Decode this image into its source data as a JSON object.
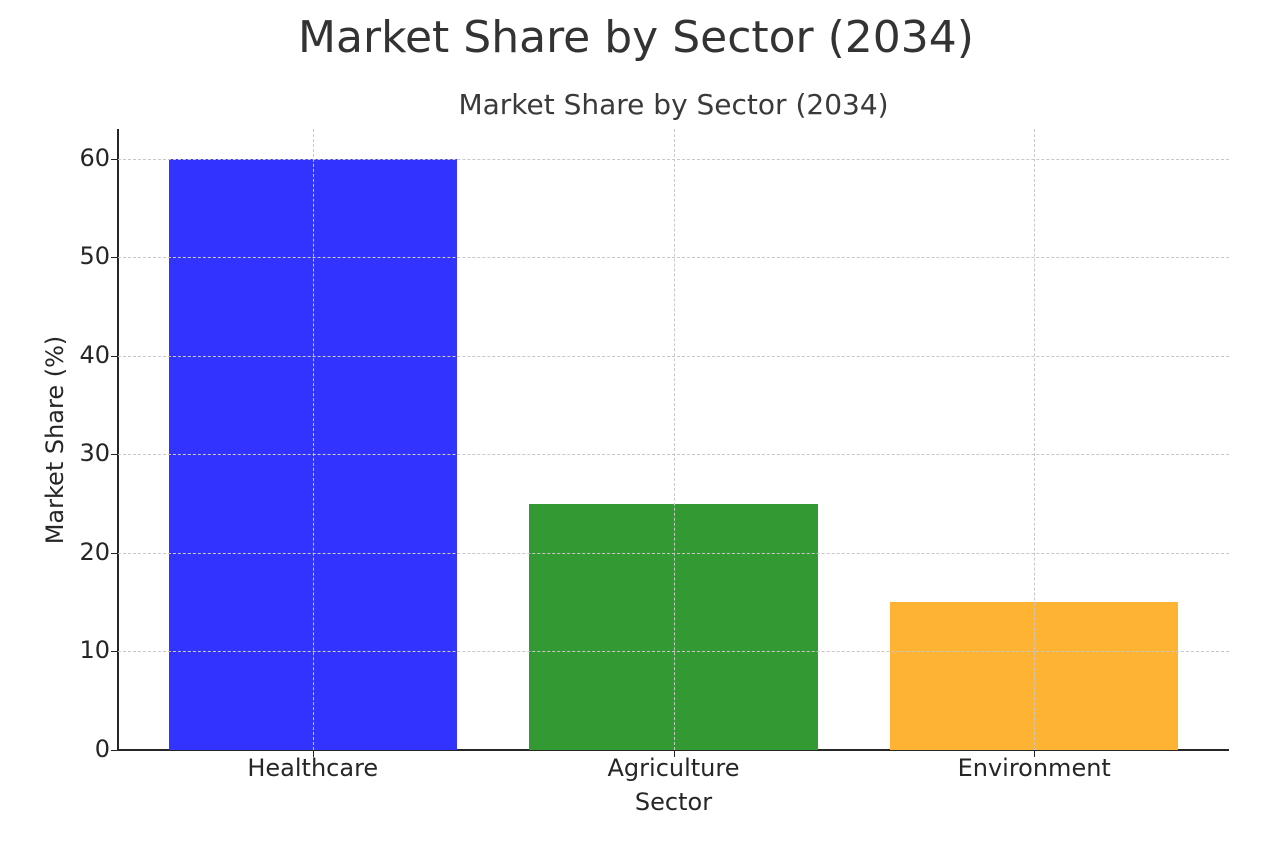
{
  "figure": {
    "suptitle": "Market Share by Sector (2034)"
  },
  "axes": {
    "title": "Market Share by Sector (2034)",
    "xlabel": "Sector",
    "ylabel": "Market Share (%)",
    "yticks": [
      "0",
      "10",
      "20",
      "30",
      "40",
      "50",
      "60"
    ],
    "xticks": [
      "Healthcare",
      "Agriculture",
      "Environment"
    ]
  },
  "colors": {
    "Healthcare": "#3333ff",
    "Agriculture": "#339933",
    "Environment": "#ffb333"
  },
  "chart_data": {
    "type": "bar",
    "title": "Market Share by Sector (2034)",
    "suptitle": "Market Share by Sector (2034)",
    "categories": [
      "Healthcare",
      "Agriculture",
      "Environment"
    ],
    "values": [
      60,
      25,
      15
    ],
    "colors": [
      "#3333ff",
      "#339933",
      "#ffb333"
    ],
    "xlabel": "Sector",
    "ylabel": "Market Share (%)",
    "ylim": [
      0,
      63
    ],
    "yticks": [
      0,
      10,
      20,
      30,
      40,
      50,
      60
    ],
    "grid": true,
    "grid_style": "dashed",
    "legend": null
  }
}
